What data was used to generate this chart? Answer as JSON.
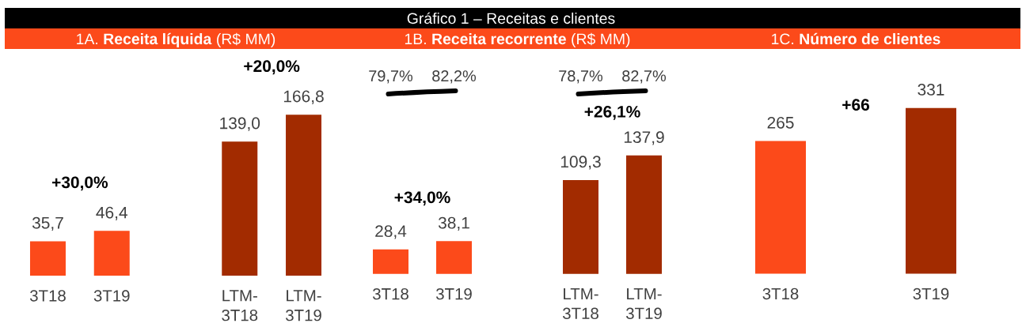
{
  "chart_data": [
    {
      "type": "other",
      "title": "Gráfico 1 – Receitas e clientes"
    },
    {
      "type": "bar",
      "title": "1A. **Receita líquida** (R$ MM)",
      "categories": [
        "3T18",
        "3T19",
        null,
        "LTM-3T18",
        "LTM-3T19"
      ],
      "values": [
        35.7,
        46.4,
        null,
        139.0,
        166.8
      ],
      "colors": [
        "#fc4a1a",
        "#fc4a1a",
        null,
        "#a22b00",
        "#a22b00"
      ],
      "value_labels": [
        "35,7",
        "46,4",
        null,
        "139,0",
        "166,8"
      ],
      "annotations": [
        "+30,0%",
        "+20,0%"
      ]
    },
    {
      "type": "bar",
      "title": "1B. **Receita recorrente** (R$ MM)",
      "categories": [
        "3T18",
        "3T19",
        null,
        "LTM-3T18",
        "LTM-3T19"
      ],
      "values": [
        28.4,
        38.1,
        null,
        109.3,
        137.9
      ],
      "colors": [
        "#fc4a1a",
        "#fc4a1a",
        null,
        "#a22b00",
        "#a22b00"
      ],
      "value_labels": [
        "28,4",
        "38,1",
        null,
        "109,3",
        "137,9"
      ],
      "annotations": [
        "+34,0%",
        "+26,1%",
        "79,7%",
        "82,2%",
        "78,7%",
        "82,7%"
      ]
    },
    {
      "type": "bar",
      "title": "1C. **Número de clientes**",
      "categories": [
        "3T18",
        "3T19"
      ],
      "values": [
        265,
        331
      ],
      "colors": [
        "#fc4a1a",
        "#a22b00"
      ],
      "value_labels": [
        "265",
        "331"
      ],
      "annotations": [
        "+66"
      ]
    }
  ]
}
